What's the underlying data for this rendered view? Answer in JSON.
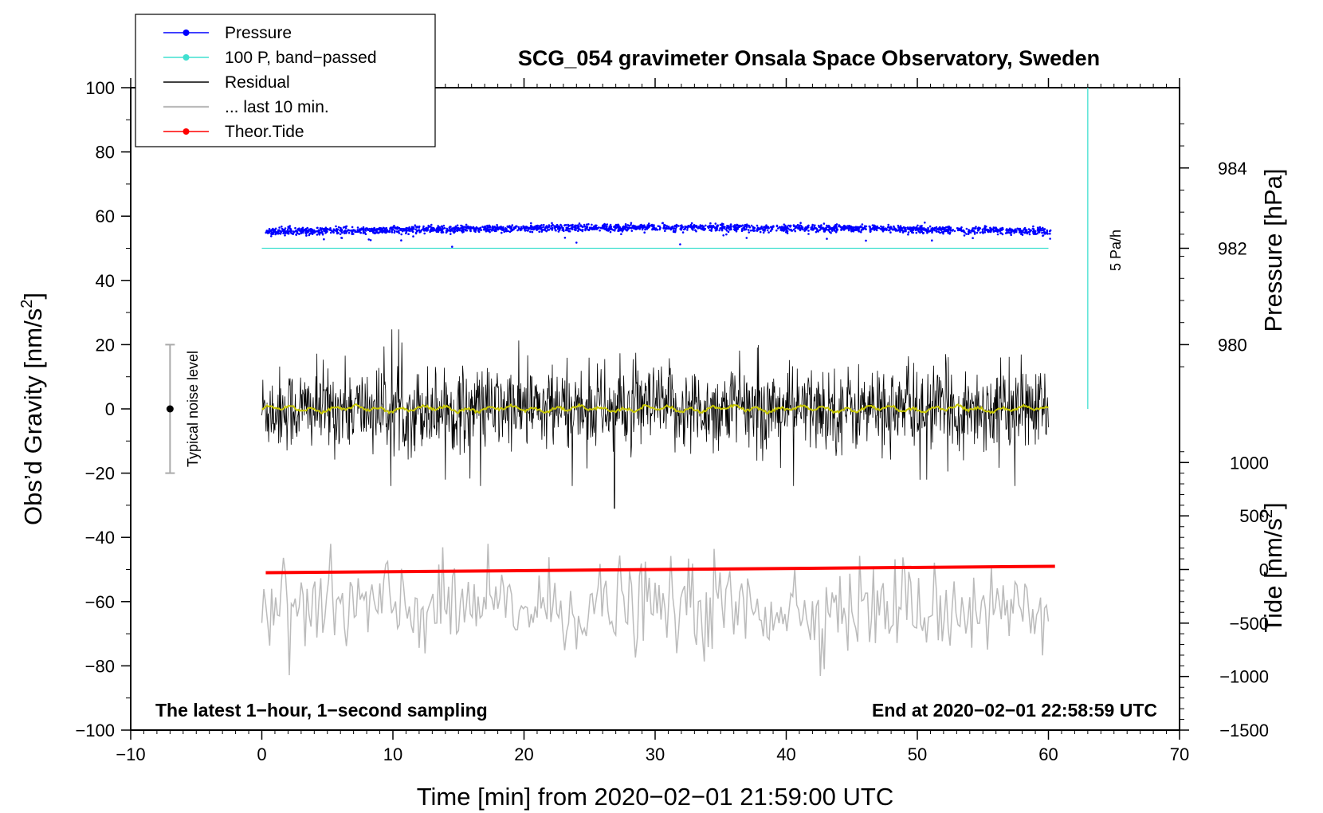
{
  "chart_data": {
    "type": "line",
    "title": "SCG_054 gravimeter Onsala Space Observatory, Sweden",
    "xlabel": "Time [min] from 2020−02−01 21:59:00 UTC",
    "ylabel_left_prefix": "Obs’d Gravity [nm/s",
    "ylabel_left_sup": "2",
    "ylabel_left_suffix": "]",
    "ylabel_right_pressure": "Pressure [hPa]",
    "ylabel_right_tide_prefix": "Tide [nm/s",
    "ylabel_right_tide_sup": "2",
    "ylabel_right_tide_suffix": "]",
    "xlim": [
      -10,
      70
    ],
    "ylim": [
      -100,
      100
    ],
    "x_ticks": [
      "−10",
      "0",
      "10",
      "20",
      "30",
      "40",
      "50",
      "60",
      "70"
    ],
    "x_tick_values": [
      -10,
      0,
      10,
      20,
      30,
      40,
      50,
      60,
      70
    ],
    "y_ticks": [
      "−100",
      "−80",
      "−60",
      "−40",
      "−20",
      "0",
      "20",
      "40",
      "60",
      "80",
      "100"
    ],
    "y_tick_values": [
      -100,
      -80,
      -60,
      -40,
      -20,
      0,
      20,
      40,
      60,
      80,
      100
    ],
    "pressure_axis": {
      "ticks": [
        "980",
        "982",
        "984"
      ],
      "tick_values": [
        980,
        982,
        984
      ],
      "gravity_equiv": [
        20,
        50,
        75
      ]
    },
    "tide_axis": {
      "ticks": [
        "−1500",
        "−1000",
        "−500",
        "0",
        "500",
        "1000"
      ],
      "tick_values": [
        -1500,
        -1000,
        -500,
        0,
        500,
        1000
      ],
      "gravity_equiv": [
        -100,
        -83.3,
        -66.7,
        -50,
        -33.3,
        -16.7
      ]
    },
    "series": [
      {
        "name": "Pressure",
        "color": "#0000ff",
        "style": "dots",
        "approx_level_nms2": 55.5,
        "x_range": [
          0.3,
          60.2
        ]
      },
      {
        "name": "100 P, band−passed",
        "color": "#40e0d0",
        "style": "line",
        "values_nms2": [
          50,
          50
        ],
        "x_range": [
          0,
          60
        ]
      },
      {
        "name": "Residual",
        "color": "#000000",
        "style": "line",
        "approx_amplitude_nms2": 20,
        "x_range": [
          0,
          60
        ]
      },
      {
        "name": "... last 10 min.",
        "color": "#bbbbbb",
        "style": "line",
        "approx_center_nms2": -62,
        "x_range": [
          0,
          60
        ]
      },
      {
        "name": "Theor.Tide",
        "color": "#ff0000",
        "style": "line",
        "values_nms2": [
          -51,
          -49
        ],
        "x_range": [
          0.3,
          60.5
        ]
      }
    ],
    "smoothed_residual": {
      "color": "#c8c800",
      "level_nms2": 0
    },
    "noise_bar": {
      "label": "Typical noise level",
      "x": -7,
      "center": 0,
      "range": [
        -20,
        20
      ]
    },
    "pressure_rate": {
      "label": "5 Pa/h",
      "x": 63,
      "range": [
        0,
        100
      ]
    },
    "bottom_left_text": "The latest 1−hour, 1−second sampling",
    "bottom_right_text": "End at 2020−02−01 22:58:59 UTC",
    "legend_position": "top-left"
  }
}
